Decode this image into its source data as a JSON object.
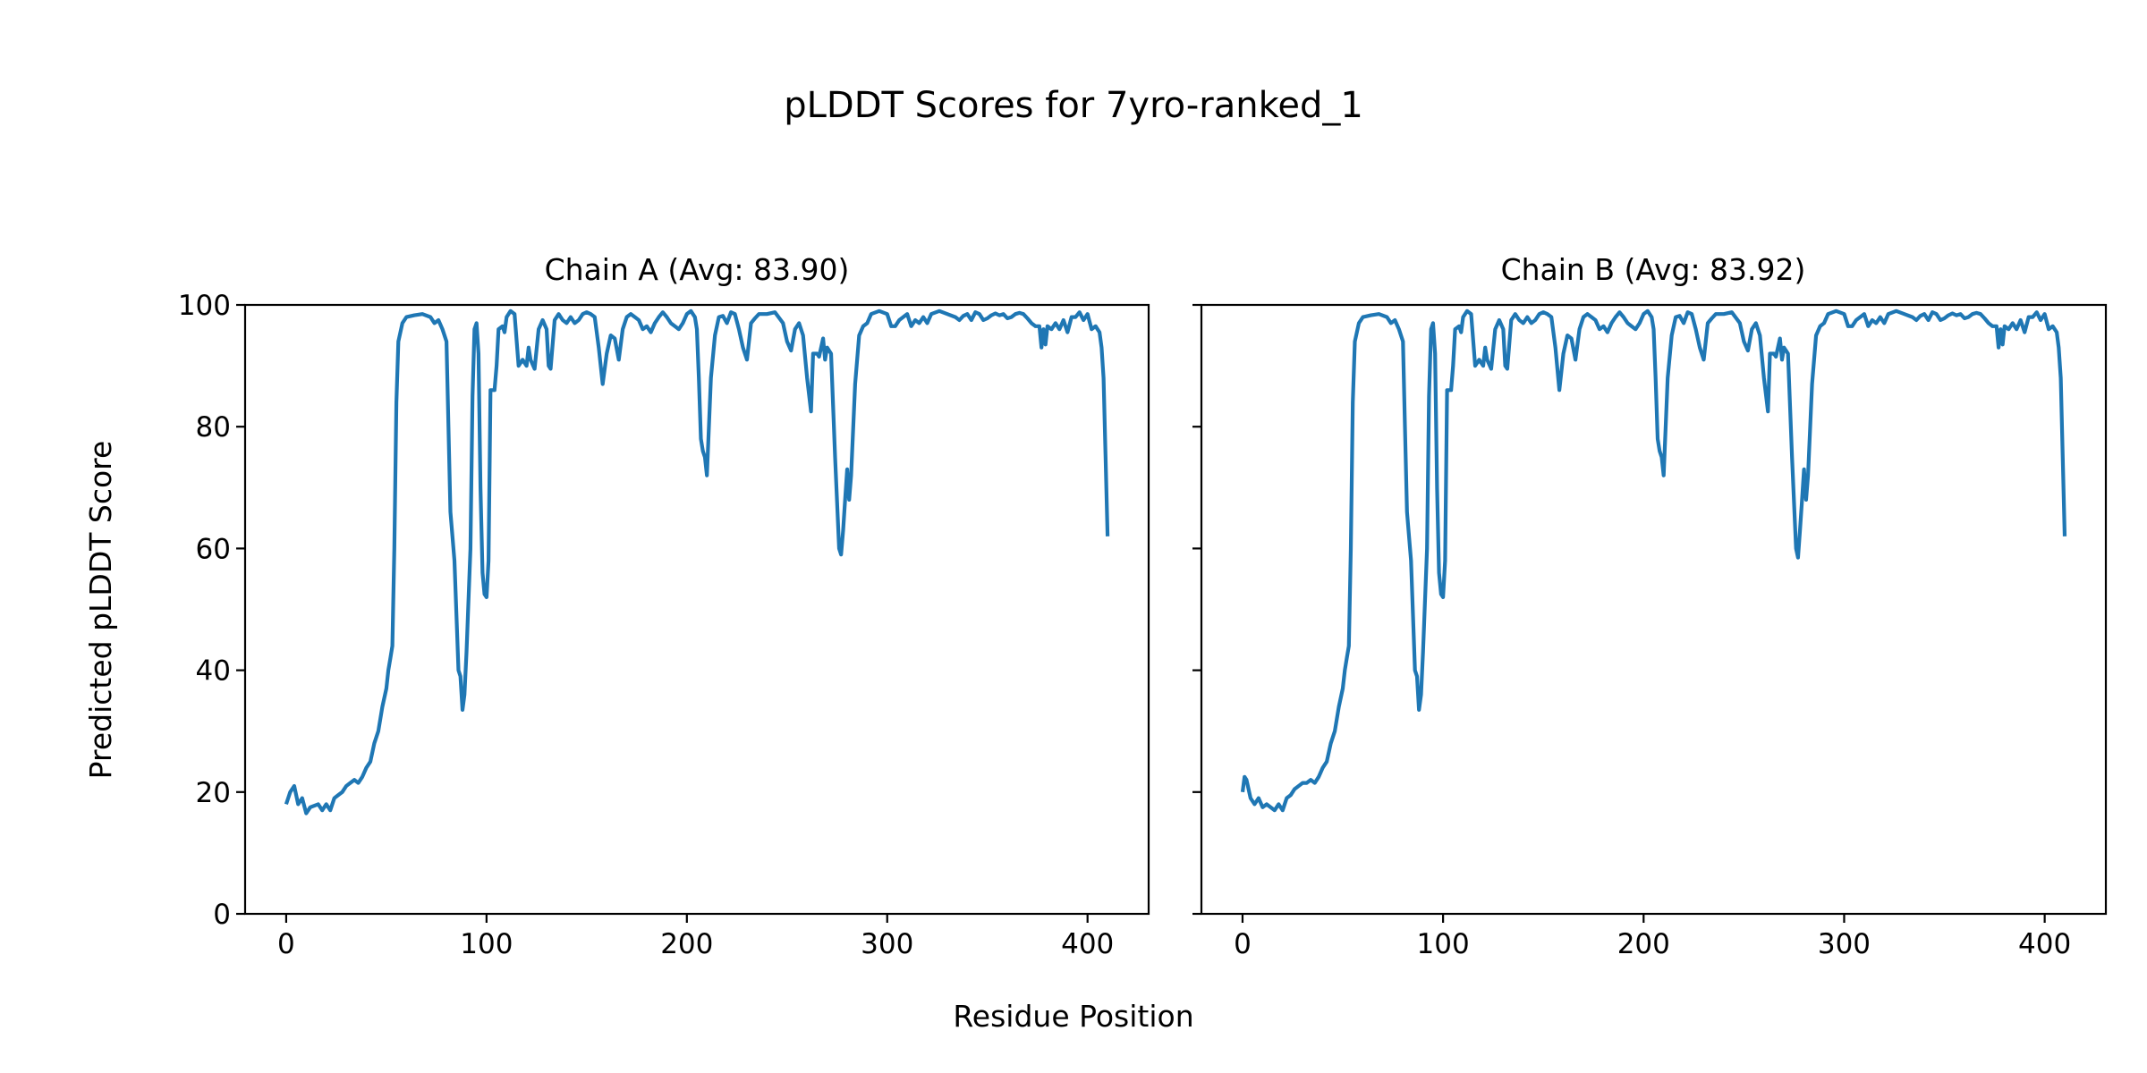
{
  "chart_data": {
    "type": "line",
    "title": "pLDDT Scores for 7yro-ranked_1",
    "xlabel": "Residue Position",
    "ylabel": "Predicted pLDDT Score",
    "xlim": [
      -20.5,
      430.5
    ],
    "ylim": [
      0,
      100
    ],
    "xticks": [
      0,
      100,
      200,
      300,
      400
    ],
    "yticks": [
      0,
      20,
      40,
      60,
      80,
      100
    ],
    "grid": false,
    "line_color": "#1f77b4",
    "shared_y": true,
    "panels": [
      {
        "title": "Chain A (Avg: 83.90)",
        "x": [
          0,
          2,
          4,
          6,
          8,
          10,
          12,
          16,
          18,
          20,
          22,
          24,
          26,
          28,
          30,
          32,
          34,
          36,
          38,
          40,
          42,
          44,
          46,
          48,
          50,
          51,
          52,
          53,
          54,
          55,
          56,
          58,
          60,
          64,
          68,
          72,
          74,
          76,
          78,
          80,
          81,
          82,
          84,
          86,
          87,
          88,
          89,
          90,
          92,
          93,
          94,
          95,
          96,
          97,
          98,
          99,
          100,
          101,
          102,
          104,
          105,
          106,
          108,
          109,
          110,
          112,
          114,
          116,
          118,
          120,
          121,
          122,
          124,
          126,
          128,
          130,
          131,
          132,
          134,
          136,
          138,
          140,
          142,
          144,
          146,
          148,
          150,
          152,
          154,
          156,
          158,
          160,
          162,
          164,
          166,
          168,
          170,
          172,
          174,
          176,
          178,
          180,
          182,
          184,
          186,
          188,
          190,
          192,
          194,
          196,
          198,
          200,
          202,
          204,
          205,
          206,
          207,
          208,
          209,
          210,
          212,
          214,
          216,
          218,
          220,
          222,
          224,
          226,
          228,
          230,
          232,
          234,
          236,
          240,
          244,
          248,
          250,
          252,
          254,
          256,
          258,
          260,
          262,
          263,
          265,
          266,
          268,
          269,
          270,
          272,
          274,
          276,
          277,
          278,
          279,
          280,
          281,
          282,
          284,
          286,
          288,
          290,
          292,
          296,
          300,
          302,
          304,
          306,
          310,
          312,
          314,
          316,
          318,
          320,
          322,
          326,
          330,
          334,
          336,
          338,
          340,
          342,
          344,
          346,
          348,
          350,
          352,
          354,
          356,
          358,
          360,
          362,
          364,
          366,
          368,
          370,
          372,
          374,
          376,
          377,
          378,
          379,
          380,
          382,
          384,
          386,
          388,
          390,
          392,
          394,
          396,
          398,
          400,
          402,
          404,
          406,
          407,
          408,
          410
        ],
        "y": [
          18,
          20,
          21,
          18,
          19,
          16.5,
          17.5,
          18,
          17,
          18,
          17,
          19,
          19.5,
          20,
          21,
          21.5,
          22,
          21.5,
          22.5,
          24,
          25,
          28,
          30,
          34,
          37,
          40,
          42,
          44,
          60,
          84,
          94,
          97,
          98,
          98.3,
          98.5,
          98,
          97,
          97.5,
          96,
          94,
          80,
          66,
          58,
          40,
          39,
          33.5,
          36,
          43,
          60,
          85,
          96,
          97,
          92,
          70,
          56,
          52.5,
          52,
          58,
          86,
          86,
          90,
          96,
          96.5,
          95.5,
          98,
          99,
          98.5,
          90,
          91,
          90,
          93,
          91,
          89.5,
          96,
          97.5,
          96,
          90,
          89.5,
          97.5,
          98.5,
          97.5,
          97,
          98,
          97,
          97.5,
          98.5,
          98.8,
          98.5,
          98,
          93,
          87,
          92,
          95,
          94.5,
          91,
          96,
          98,
          98.5,
          98,
          97.5,
          96,
          96.5,
          95.5,
          97,
          98,
          98.8,
          98,
          97,
          96.5,
          96,
          97,
          98.5,
          99,
          98,
          96,
          88,
          78,
          76,
          75,
          72,
          88,
          95,
          98,
          98.2,
          97,
          98.8,
          98.5,
          96,
          93,
          91,
          97,
          97.8,
          98.5,
          98.5,
          98.8,
          97,
          94,
          92.5,
          96,
          97,
          95,
          88,
          82.5,
          92,
          92,
          91.5,
          94.5,
          91,
          93,
          92,
          75,
          60,
          59,
          63,
          68,
          73,
          68,
          72,
          87,
          95,
          96.5,
          97,
          98.5,
          99,
          98.5,
          96.5,
          96.5,
          97.5,
          98.5,
          96.5,
          97.5,
          97,
          98,
          97,
          98.5,
          99,
          98.5,
          98,
          97.5,
          98.2,
          98.5,
          97.5,
          98.8,
          98.5,
          97.5,
          97.8,
          98.3,
          98.6,
          98.3,
          98.5,
          97.8,
          98,
          98.5,
          98.7,
          98.5,
          97.8,
          97,
          96.5,
          96.5,
          93,
          96,
          93.5,
          96.5,
          96,
          97,
          96,
          97.5,
          95.5,
          98,
          98,
          98.8,
          97.5,
          98.5,
          96,
          96.5,
          95.5,
          93,
          88,
          62
        ]
      },
      {
        "title": "Chain B (Avg: 83.92)",
        "x": [
          0,
          1,
          2,
          4,
          6,
          8,
          10,
          12,
          16,
          18,
          20,
          22,
          24,
          26,
          28,
          30,
          32,
          34,
          36,
          38,
          40,
          42,
          44,
          46,
          48,
          50,
          51,
          52,
          53,
          54,
          55,
          56,
          58,
          60,
          64,
          68,
          72,
          74,
          76,
          78,
          80,
          81,
          82,
          84,
          86,
          87,
          88,
          89,
          90,
          92,
          93,
          94,
          95,
          96,
          97,
          98,
          99,
          100,
          101,
          102,
          104,
          105,
          106,
          108,
          109,
          110,
          112,
          114,
          116,
          118,
          120,
          121,
          122,
          124,
          126,
          128,
          130,
          131,
          132,
          134,
          136,
          138,
          140,
          142,
          144,
          146,
          148,
          150,
          152,
          154,
          156,
          158,
          160,
          162,
          164,
          166,
          168,
          170,
          172,
          174,
          176,
          178,
          180,
          182,
          184,
          186,
          188,
          190,
          192,
          194,
          196,
          198,
          200,
          202,
          204,
          205,
          206,
          207,
          208,
          209,
          210,
          212,
          214,
          216,
          218,
          220,
          222,
          224,
          226,
          228,
          230,
          232,
          234,
          236,
          240,
          244,
          248,
          250,
          252,
          254,
          256,
          258,
          260,
          262,
          263,
          265,
          266,
          268,
          269,
          270,
          272,
          274,
          276,
          277,
          278,
          279,
          280,
          281,
          282,
          284,
          286,
          288,
          290,
          292,
          296,
          300,
          302,
          304,
          306,
          310,
          312,
          314,
          316,
          318,
          320,
          322,
          326,
          330,
          334,
          336,
          338,
          340,
          342,
          344,
          346,
          348,
          350,
          352,
          354,
          356,
          358,
          360,
          362,
          364,
          366,
          368,
          370,
          372,
          374,
          376,
          377,
          378,
          379,
          380,
          382,
          384,
          386,
          388,
          390,
          392,
          394,
          396,
          398,
          400,
          402,
          404,
          406,
          407,
          408,
          410
        ],
        "y": [
          20,
          22.5,
          22,
          19,
          18,
          19,
          17.5,
          18,
          17,
          18,
          17,
          19,
          19.5,
          20.5,
          21,
          21.5,
          21.5,
          22,
          21.5,
          22.5,
          24,
          25,
          28,
          30,
          34,
          37,
          40,
          42,
          44,
          60,
          84,
          94,
          97,
          98,
          98.3,
          98.5,
          98,
          97,
          97.5,
          96,
          94,
          80,
          66,
          58,
          40,
          39,
          33.5,
          36,
          43,
          60,
          85,
          96,
          97,
          92,
          70,
          56,
          52.5,
          52,
          58,
          86,
          86,
          90,
          96,
          96.5,
          95.5,
          98,
          99,
          98.5,
          90,
          91,
          90,
          93,
          91,
          89.5,
          96,
          97.5,
          96,
          90,
          89.5,
          97.5,
          98.5,
          97.5,
          97,
          98,
          97,
          97.5,
          98.5,
          98.8,
          98.5,
          98,
          93,
          86,
          92,
          95,
          94.5,
          91,
          96,
          98,
          98.5,
          98,
          97.5,
          96,
          96.5,
          95.5,
          97,
          98,
          98.8,
          98,
          97,
          96.5,
          96,
          97,
          98.5,
          99,
          98,
          96,
          88,
          78,
          76,
          75,
          72,
          88,
          95,
          98,
          98.2,
          97,
          98.8,
          98.5,
          96,
          93,
          91,
          97,
          97.8,
          98.5,
          98.5,
          98.8,
          97,
          94,
          92.5,
          96,
          97,
          95,
          88,
          82.5,
          92,
          92,
          91.5,
          94.5,
          91,
          93,
          92,
          75,
          60,
          58.5,
          63,
          68,
          73,
          68,
          72,
          87,
          95,
          96.5,
          97,
          98.5,
          99,
          98.5,
          96.5,
          96.5,
          97.5,
          98.5,
          96.5,
          97.5,
          97,
          98,
          97,
          98.5,
          99,
          98.5,
          98,
          97.5,
          98.2,
          98.5,
          97.5,
          98.8,
          98.5,
          97.5,
          97.8,
          98.3,
          98.6,
          98.3,
          98.5,
          97.8,
          98,
          98.5,
          98.7,
          98.5,
          97.8,
          97,
          96.5,
          96.5,
          93,
          96,
          93.5,
          96.5,
          96,
          97,
          96,
          97.5,
          95.5,
          98,
          98,
          98.8,
          97.5,
          98.5,
          96,
          96.5,
          95.5,
          93,
          88,
          62
        ]
      }
    ]
  }
}
